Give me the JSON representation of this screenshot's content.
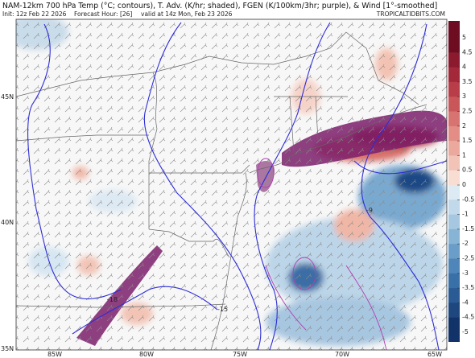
{
  "header": {
    "title": "NAM-12km 700 hPa Temp (°C; contours), T. Adv. (K/hr; shaded), FGEN (K/100km/3hr; purple), & Wind [1°-smoothed]",
    "init": "Init: 12z Feb 22 2026",
    "forecast_hour": "Forecast Hour: [26]",
    "valid": "valid at 14z Mon, Feb 23 2026",
    "watermark": "TROPICALTIDBITS.COM"
  },
  "map": {
    "lat_labels": [
      "45N",
      "40N",
      "35N"
    ],
    "lon_labels": [
      "85W",
      "80W",
      "75W",
      "70W",
      "65W"
    ],
    "contour_labels": [
      "-18",
      "-15",
      "-9"
    ]
  },
  "colorbar": {
    "ticks": [
      5,
      4.5,
      4,
      3.5,
      3,
      2.5,
      2,
      1.5,
      1,
      0.5,
      0,
      -0.5,
      -1,
      -1.5,
      -2,
      -2.5,
      -3,
      -3.5,
      -4,
      -4.5,
      -5
    ],
    "colors": [
      "#6e0d22",
      "#8c1a2e",
      "#a3283a",
      "#b83d48",
      "#c9575a",
      "#d77370",
      "#e28e86",
      "#eba99e",
      "#f2c3b7",
      "#f8ddd3",
      "#dceaf3",
      "#c1d9ea",
      "#a5c7e0",
      "#87b3d5",
      "#6a9dc8",
      "#4f86b9",
      "#3a70a8",
      "#2b5b95",
      "#1e4780",
      "#12336a"
    ]
  }
}
